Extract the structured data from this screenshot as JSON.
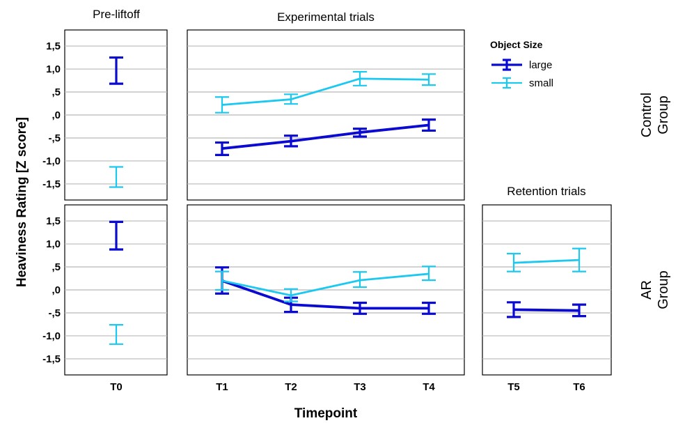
{
  "chart_data": {
    "type": "line",
    "ylabel": "Heaviness Rating [Z score]",
    "xlabel": "Timepoint",
    "ylim": [
      -1.85,
      1.85
    ],
    "yticks": [
      "1,5",
      "1,0",
      ",5",
      ",0",
      "-,5",
      "-1,0",
      "-1,5"
    ],
    "ytick_values": [
      1.5,
      1.0,
      0.5,
      0.0,
      -0.5,
      -1.0,
      -1.5
    ],
    "grid": true,
    "legend": {
      "title": "Object Size",
      "position": "top-right",
      "entries": [
        {
          "name": "large",
          "color": "#0a0ad0"
        },
        {
          "name": "small",
          "color": "#1ac8f0"
        }
      ]
    },
    "columns": [
      {
        "title": "Pre-liftoff",
        "categories": [
          "T0"
        ]
      },
      {
        "title": "Experimental trials",
        "categories": [
          "T1",
          "T2",
          "T3",
          "T4"
        ]
      },
      {
        "title": "Retention trials",
        "categories": [
          "T5",
          "T6"
        ]
      }
    ],
    "rows": [
      {
        "label_line1": "Control",
        "label_line2": "Group"
      },
      {
        "label_line1": "AR",
        "label_line2": "Group"
      }
    ],
    "panels": [
      {
        "row": 0,
        "col": 0,
        "series": [
          {
            "name": "large",
            "mean": [
              0.98
            ],
            "lower": [
              0.68
            ],
            "upper": [
              1.25
            ]
          },
          {
            "name": "small",
            "mean": [
              -1.35
            ],
            "lower": [
              -1.57
            ],
            "upper": [
              -1.13
            ]
          }
        ]
      },
      {
        "row": 0,
        "col": 1,
        "series": [
          {
            "name": "large",
            "mean": [
              -0.73,
              -0.57,
              -0.38,
              -0.22
            ],
            "lower": [
              -0.87,
              -0.68,
              -0.47,
              -0.34
            ],
            "upper": [
              -0.6,
              -0.45,
              -0.3,
              -0.1
            ]
          },
          {
            "name": "small",
            "mean": [
              0.22,
              0.34,
              0.79,
              0.77
            ],
            "lower": [
              0.05,
              0.24,
              0.64,
              0.65
            ],
            "upper": [
              0.39,
              0.45,
              0.94,
              0.89
            ]
          }
        ]
      },
      {
        "row": 1,
        "col": 0,
        "series": [
          {
            "name": "large",
            "mean": [
              1.18
            ],
            "lower": [
              0.88
            ],
            "upper": [
              1.48
            ]
          },
          {
            "name": "small",
            "mean": [
              -0.97
            ],
            "lower": [
              -1.18
            ],
            "upper": [
              -0.76
            ]
          }
        ]
      },
      {
        "row": 1,
        "col": 1,
        "series": [
          {
            "name": "large",
            "mean": [
              0.2,
              -0.32,
              -0.4,
              -0.4
            ],
            "lower": [
              -0.08,
              -0.48,
              -0.52,
              -0.52
            ],
            "upper": [
              0.49,
              -0.17,
              -0.28,
              -0.28
            ]
          },
          {
            "name": "small",
            "mean": [
              0.2,
              -0.12,
              0.21,
              0.35
            ],
            "lower": [
              0.0,
              -0.25,
              0.06,
              0.21
            ],
            "upper": [
              0.4,
              0.02,
              0.39,
              0.51
            ]
          }
        ]
      },
      {
        "row": 1,
        "col": 2,
        "series": [
          {
            "name": "large",
            "mean": [
              -0.43,
              -0.45
            ],
            "lower": [
              -0.59,
              -0.57
            ],
            "upper": [
              -0.27,
              -0.32
            ]
          },
          {
            "name": "small",
            "mean": [
              0.59,
              0.65
            ],
            "lower": [
              0.4,
              0.4
            ],
            "upper": [
              0.79,
              0.9
            ]
          }
        ]
      }
    ]
  }
}
